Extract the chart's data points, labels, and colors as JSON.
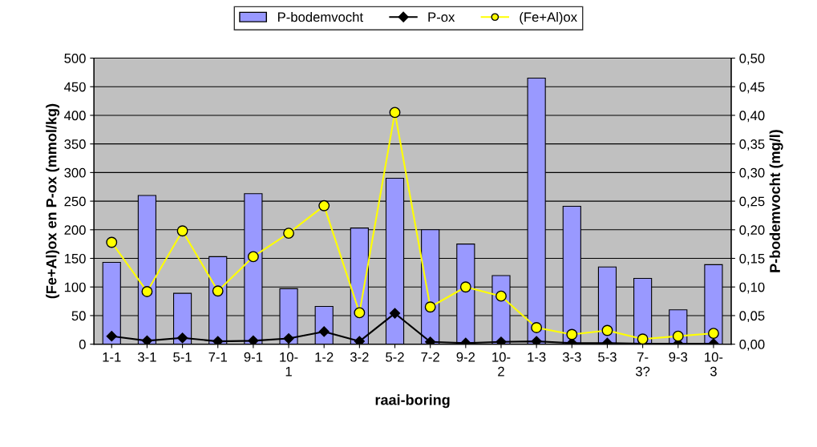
{
  "chart_data": {
    "type": "bar",
    "xlabel": "raai-boring",
    "ylabel": "(Fe+Al)ox en P-ox (mmol/kg)",
    "y2label": "P-bodemvocht (mg/l)",
    "categories": [
      "1-1",
      "3-1",
      "5-1",
      "7-1",
      "9-1",
      "10-\n1",
      "1-2",
      "3-2",
      "5-2",
      "7-2",
      "9-2",
      "10-\n2",
      "1-3",
      "3-3",
      "5-3",
      "7-\n3?",
      "9-3",
      "10-\n3"
    ],
    "series": [
      {
        "name": "P-bodemvocht",
        "axis": "y2",
        "color": "#9999ff",
        "values": [
          0.143,
          0.26,
          0.089,
          0.153,
          0.263,
          0.097,
          0.066,
          0.203,
          0.29,
          0.2,
          0.175,
          0.12,
          0.465,
          0.241,
          0.135,
          0.115,
          0.06,
          0.139
        ]
      },
      {
        "name": "P-ox",
        "type": "line",
        "color": "#000000",
        "marker": "diamond",
        "values": [
          14,
          6,
          11,
          5,
          6,
          10,
          22,
          5,
          54,
          4,
          2,
          4,
          5,
          2,
          2,
          1,
          1,
          1
        ]
      },
      {
        "name": "(Fe+Al)ox",
        "type": "line",
        "color": "#ffff00",
        "marker": "circle",
        "values": [
          178,
          92,
          198,
          93,
          153,
          194,
          242,
          55,
          405,
          65,
          100,
          84,
          29,
          17,
          24,
          9,
          14,
          19
        ]
      }
    ],
    "ylim": [
      0,
      500
    ],
    "yticks": [
      0,
      50,
      100,
      150,
      200,
      250,
      300,
      350,
      400,
      450,
      500
    ],
    "y2lim": [
      0,
      0.5
    ],
    "y2ticks": [
      {
        "value": 0,
        "label": "0,00"
      },
      {
        "value": 0.05,
        "label": "0,05"
      },
      {
        "value": 0.1,
        "label": "0,10"
      },
      {
        "value": 0.15,
        "label": "0,15"
      },
      {
        "value": 0.2,
        "label": "0,20"
      },
      {
        "value": 0.25,
        "label": "0,25"
      },
      {
        "value": 0.3,
        "label": "0,30"
      },
      {
        "value": 0.35,
        "label": "0,35"
      },
      {
        "value": 0.4,
        "label": "0,40"
      },
      {
        "value": 0.45,
        "label": "0,45"
      },
      {
        "value": 0.5,
        "label": "0,50"
      }
    ],
    "grid": "y",
    "legend": "top"
  }
}
